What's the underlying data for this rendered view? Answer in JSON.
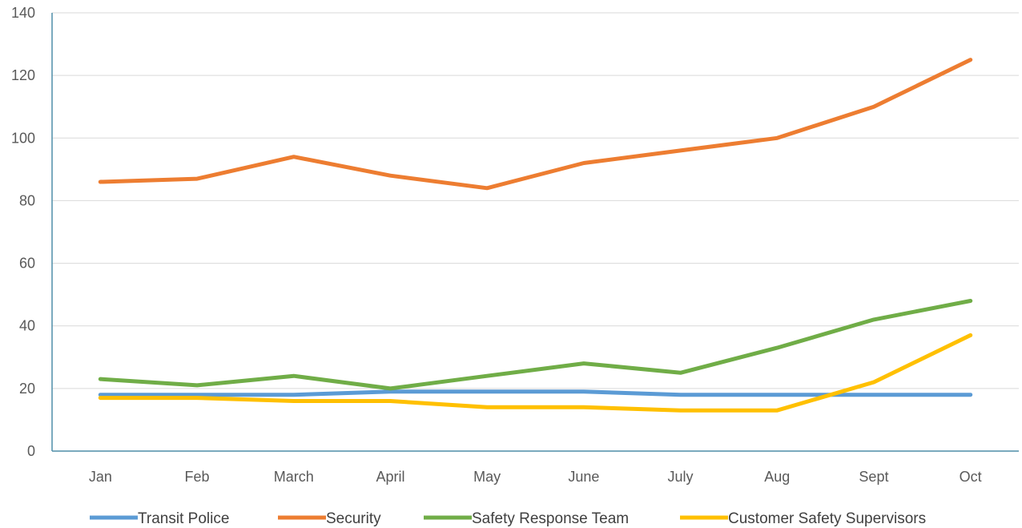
{
  "chart_data": {
    "type": "line",
    "title": "",
    "xlabel": "",
    "ylabel": "",
    "categories": [
      "Jan",
      "Feb",
      "March",
      "April",
      "May",
      "June",
      "July",
      "Aug",
      "Sept",
      "Oct"
    ],
    "ylim": [
      0,
      140
    ],
    "yticks": [
      0,
      20,
      40,
      60,
      80,
      100,
      120,
      140
    ],
    "grid": true,
    "legend_position": "bottom",
    "series": [
      {
        "name": "Transit Police",
        "color": "#5B9BD5",
        "values": [
          18,
          18,
          18,
          19,
          19,
          19,
          18,
          18,
          18,
          18
        ]
      },
      {
        "name": "Security",
        "color": "#ED7D31",
        "values": [
          86,
          87,
          94,
          88,
          84,
          92,
          96,
          100,
          110,
          125
        ]
      },
      {
        "name": "Safety Response Team",
        "color": "#70AD47",
        "values": [
          23,
          21,
          24,
          20,
          24,
          28,
          25,
          33,
          42,
          48
        ]
      },
      {
        "name": "Customer Safety Supervisors",
        "color": "#FFC000",
        "values": [
          17,
          17,
          16,
          16,
          14,
          14,
          13,
          13,
          22,
          37
        ]
      }
    ]
  }
}
